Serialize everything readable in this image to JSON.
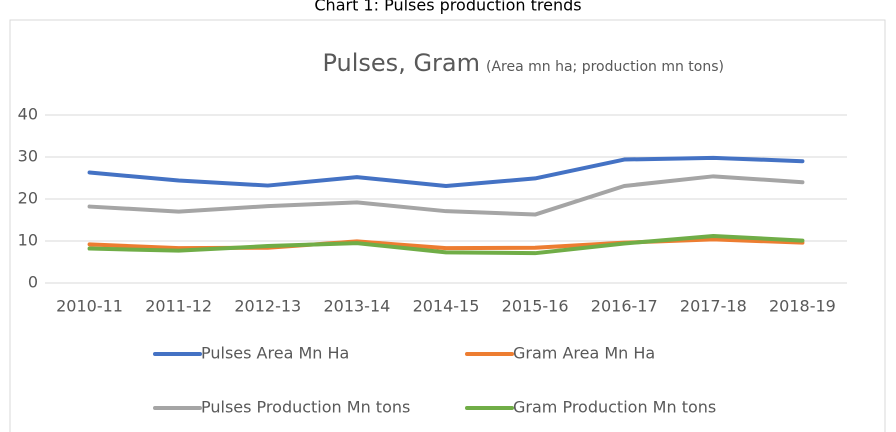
{
  "caption": "Chart 1: Pulses production trends",
  "chart_data": {
    "type": "line",
    "title": "Pulses, Gram",
    "subtitle": "(Area mn ha; production mn tons)",
    "categories": [
      "2010-11",
      "2011-12",
      "2012-13",
      "2013-14",
      "2014-15",
      "2015-16",
      "2016-17",
      "2017-18",
      "2018-19"
    ],
    "series": [
      {
        "name": "Pulses Area Mn Ha",
        "color": "#4472c4",
        "values": [
          26.3,
          24.4,
          23.2,
          25.2,
          23.1,
          24.9,
          29.4,
          29.8,
          29.0
        ]
      },
      {
        "name": "Gram Area Mn Ha",
        "color": "#ed7d31",
        "values": [
          9.2,
          8.3,
          8.4,
          9.9,
          8.3,
          8.4,
          9.6,
          10.4,
          9.6
        ]
      },
      {
        "name": "Pulses Production Mn tons",
        "color": "#a5a5a5",
        "values": [
          18.2,
          17.0,
          18.3,
          19.2,
          17.1,
          16.3,
          23.1,
          25.4,
          24.0
        ]
      },
      {
        "name": "Gram Production Mn tons",
        "color": "#70ad47",
        "values": [
          8.2,
          7.7,
          8.8,
          9.5,
          7.3,
          7.1,
          9.4,
          11.2,
          10.1
        ]
      }
    ],
    "ylim": [
      0,
      40
    ],
    "yticks": [
      0,
      10,
      20,
      30,
      40
    ],
    "grid": true,
    "legend": "bottom"
  }
}
